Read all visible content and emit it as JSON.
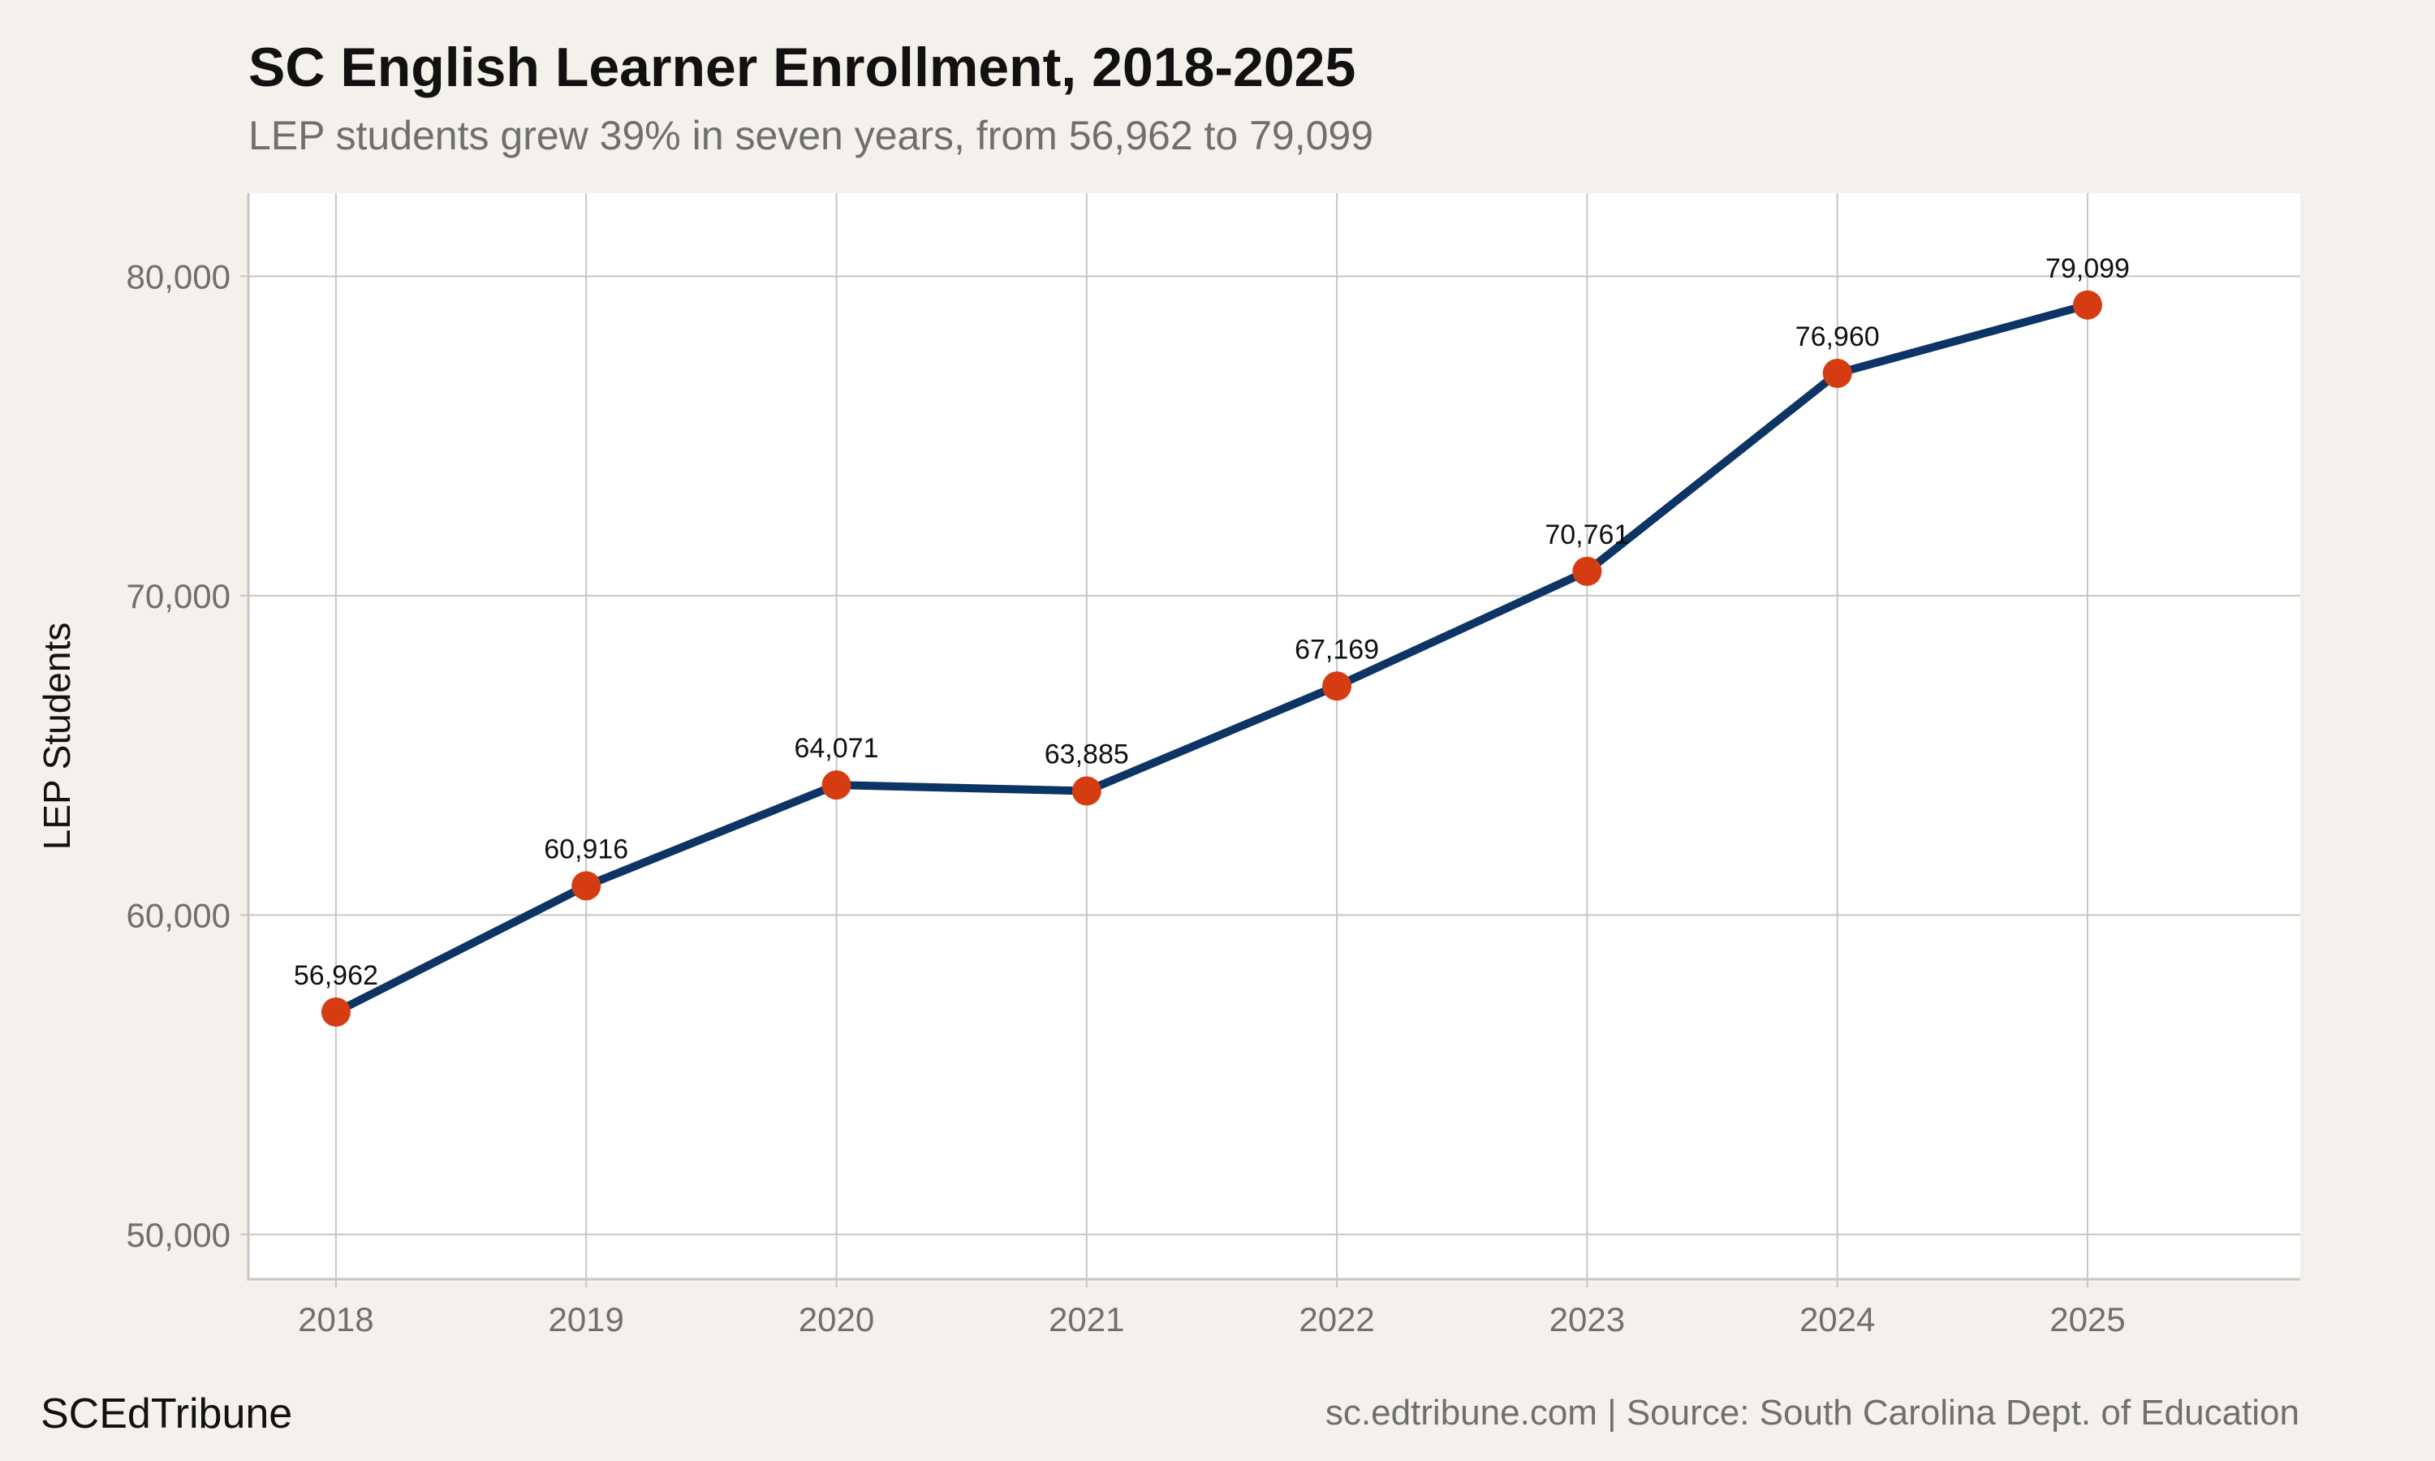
{
  "header": {
    "title": "SC English Learner Enrollment, 2018-2025",
    "subtitle": "LEP students grew 39% in seven years, from 56,962 to 79,099"
  },
  "footer": {
    "brand": "SCEdTribune",
    "source": "sc.edtribune.com | Source: South Carolina Dept. of Education"
  },
  "colors": {
    "line": "#0c3464",
    "point": "#d63c11",
    "grid": "#c9c6bf",
    "panel": "#ffffff",
    "background": "#f4f1ec"
  },
  "chart_data": {
    "type": "line",
    "title": "SC English Learner Enrollment, 2018-2025",
    "subtitle": "LEP students grew 39% in seven years, from 56,962 to 79,099",
    "xlabel": "",
    "ylabel": "LEP Students",
    "x": [
      2018,
      2019,
      2020,
      2021,
      2022,
      2023,
      2024,
      2025
    ],
    "x_tick_labels": [
      "2018",
      "2019",
      "2020",
      "2021",
      "2022",
      "2023",
      "2024",
      "2025"
    ],
    "xlim": [
      2017.65,
      2025.85
    ],
    "ylim": [
      48600,
      82600
    ],
    "y_ticks": [
      50000,
      60000,
      70000,
      80000
    ],
    "y_tick_labels": [
      "50,000",
      "60,000",
      "70,000",
      "80,000"
    ],
    "grid": true,
    "series": [
      {
        "values": [
          56962,
          60916,
          64071,
          63885,
          67169,
          70761,
          76960,
          79099
        ],
        "data_labels": [
          "56,962",
          "60,916",
          "64,071",
          "63,885",
          "67,169",
          "70,761",
          "76,960",
          "79,099"
        ]
      }
    ]
  }
}
